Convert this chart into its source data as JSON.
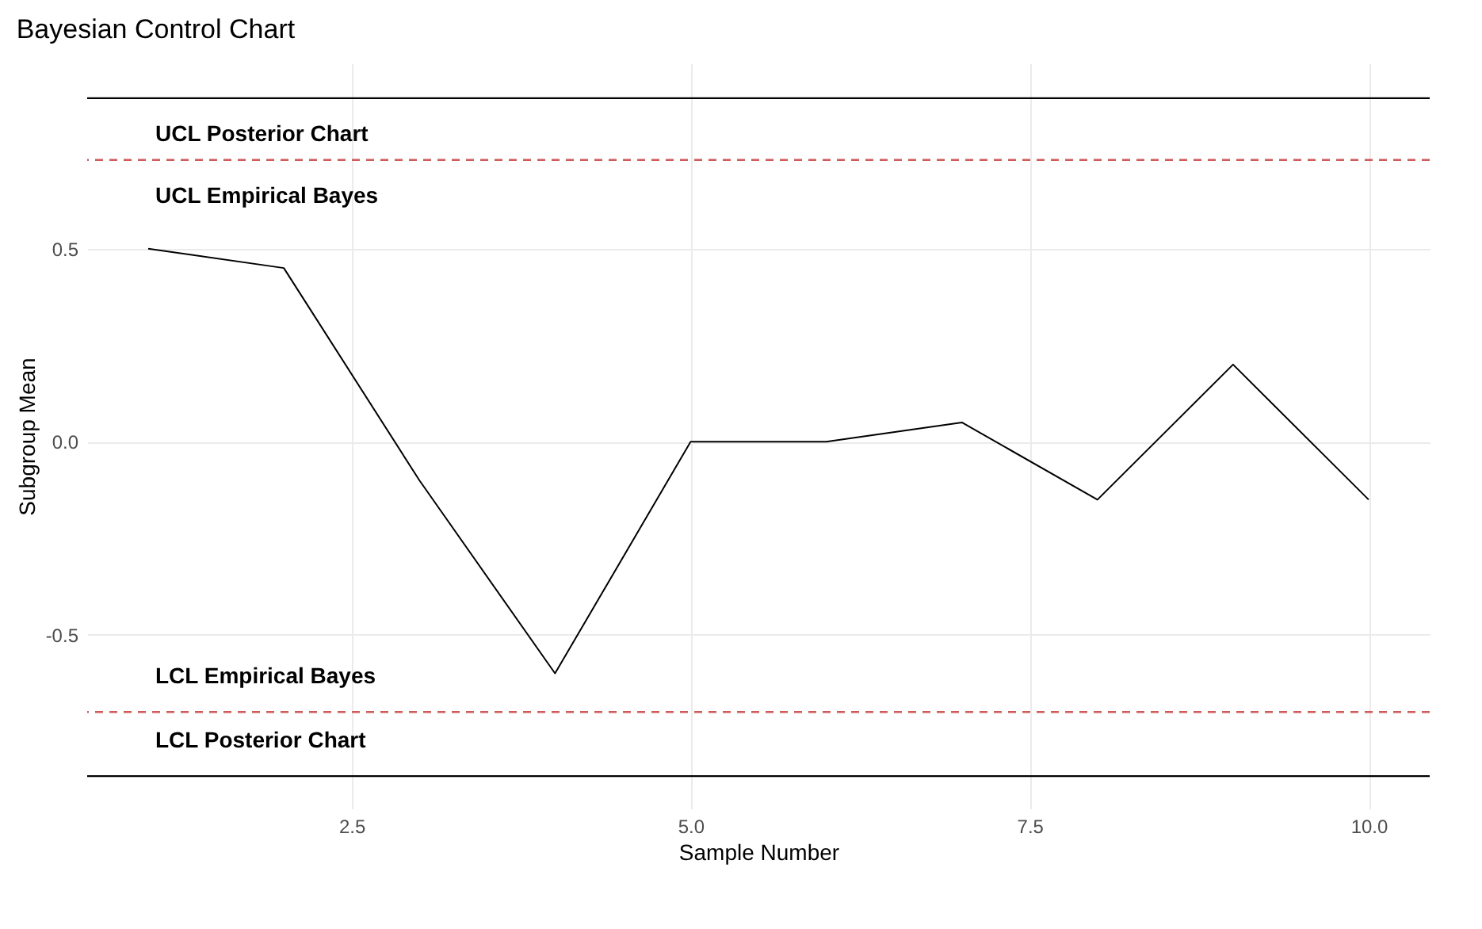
{
  "chart_data": {
    "type": "line",
    "title": "Bayesian Control Chart",
    "xlabel": "Sample Number",
    "ylabel": "Subgroup Mean",
    "x": [
      1,
      2,
      3,
      4,
      5,
      6,
      7,
      8,
      9,
      10
    ],
    "series": [
      {
        "color": "#000000",
        "values": [
          0.5,
          0.45,
          -0.1,
          -0.6,
          0,
          0,
          0.05,
          -0.15,
          0.2,
          -0.15
        ]
      }
    ],
    "xlim": [
      0.55,
      10.45
    ],
    "xticks": [
      2.5,
      {
        "value": 5,
        "label": "5.0"
      },
      7.5,
      {
        "value": 10,
        "label": "10.0"
      }
    ],
    "ylim": [
      -0.95,
      0.98
    ],
    "yticks": [
      -0.5,
      {
        "value": 0,
        "label": "0.0"
      },
      0.5
    ],
    "grid": true,
    "marker": "none",
    "line_style": "solid",
    "ref_lines": [
      {
        "axis": "y",
        "value": 0.89,
        "label": "UCL Posterior Chart",
        "color": "#000000",
        "line_style": "solid"
      },
      {
        "axis": "y",
        "value": 0.73,
        "label": "UCL Empirical Bayes",
        "color": "#cd5c5c",
        "line_style": "dashed"
      },
      {
        "axis": "y",
        "value": -0.7,
        "label": "LCL Empirical Bayes",
        "color": "#cd5c5c",
        "line_style": "dashed"
      },
      {
        "axis": "y",
        "value": -0.866,
        "label": "LCL Posterior Chart",
        "color": "#000000",
        "line_style": "solid"
      }
    ]
  }
}
